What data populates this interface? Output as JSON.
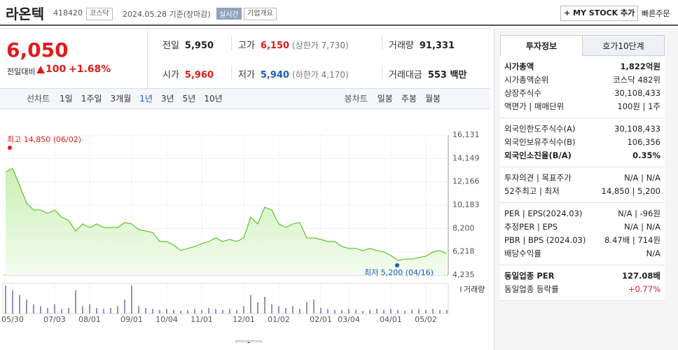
{
  "header": {
    "name": "라온텍",
    "code": "418420",
    "market": "코스닥",
    "date": "2024.05.28 기준(장마감)",
    "realtime": "실시간",
    "overview": "기업개요",
    "mystock": "+ MY STOCK 추가",
    "quick_order": "빠른주문"
  },
  "quote": {
    "price": "6,050",
    "change_label": "전일대비",
    "change": "100",
    "change_pct": "+1.68%"
  },
  "stats": [
    {
      "label": "전일",
      "value": "5,950"
    },
    {
      "label": "고가",
      "value": "6,150",
      "note": "(상한가 7,730)",
      "color": "#e01b1b"
    },
    {
      "label": "거래량",
      "value": "91,331"
    },
    {
      "label": "시가",
      "value": "5,960",
      "color": "#e01b1b"
    },
    {
      "label": "저가",
      "value": "5,940",
      "note": "(하한가 4,170)",
      "color": "#1a5bc4"
    },
    {
      "label": "거래대금",
      "value": "553 백만"
    }
  ],
  "tabs": {
    "line_label": "선차트",
    "line": [
      "1일",
      "1주일",
      "3개월",
      "1년",
      "3년",
      "5년",
      "10년"
    ],
    "active": "1년",
    "candle_label": "봉차트",
    "candle": [
      "일봉",
      "주봉",
      "월봉"
    ]
  },
  "chart_data": {
    "type": "line",
    "color": "#5cc22c",
    "grid": true,
    "categories": [
      null,
      "05/30",
      null,
      null,
      null,
      null,
      null,
      "07/03",
      null,
      null,
      null,
      null,
      "08/01",
      null,
      null,
      null,
      null,
      null,
      "09/01",
      null,
      null,
      null,
      null,
      "10/04",
      null,
      null,
      null,
      null,
      "11/01",
      null,
      null,
      null,
      null,
      null,
      "12/01",
      null,
      null,
      null,
      null,
      "01/02",
      null,
      null,
      null,
      null,
      null,
      "02/01",
      null,
      null,
      null,
      "03/04",
      null,
      null,
      null,
      null,
      null,
      "04/01",
      null,
      null,
      null,
      null,
      "05/02",
      null,
      null,
      null
    ],
    "values": [
      13000,
      13300,
      11850,
      10360,
      9770,
      9770,
      9470,
      9770,
      9170,
      8870,
      7980,
      8580,
      8280,
      8580,
      8280,
      8280,
      8280,
      8700,
      8580,
      8100,
      7980,
      7860,
      7090,
      7090,
      6790,
      6320,
      6500,
      6670,
      6910,
      7090,
      7390,
      7090,
      7270,
      7090,
      7390,
      9170,
      8580,
      10000,
      9770,
      8580,
      8280,
      8580,
      8700,
      7390,
      7390,
      7270,
      7090,
      7090,
      6670,
      6500,
      6500,
      6320,
      6500,
      6320,
      6200,
      5900,
      5480,
      5600,
      5600,
      5720,
      5840,
      6200,
      6320,
      6050
    ],
    "ylim": [
      4235,
      16131
    ],
    "yticks": [
      {
        "value": 16131,
        "label": "16,131"
      },
      {
        "value": 14149,
        "label": "14,149"
      },
      {
        "value": 12166,
        "label": "12,166"
      },
      {
        "value": 10183,
        "label": "10,183"
      },
      {
        "value": 8200,
        "label": "8,200"
      },
      {
        "value": 6218,
        "label": "6,218"
      },
      {
        "value": 4235,
        "label": "4,235"
      }
    ],
    "annotations": [
      "최고 14,850 (06/02)",
      "최저 5,200 (04/16)"
    ],
    "volume": {
      "name": "거래량",
      "color": "#9a8fbf",
      "values": [
        30,
        25,
        20,
        15,
        10,
        8,
        6,
        10,
        5,
        6,
        25,
        8,
        10,
        6,
        5,
        6,
        8,
        15,
        30,
        8,
        6,
        5,
        4,
        5,
        4,
        3,
        4,
        5,
        4,
        6,
        5,
        4,
        5,
        4,
        8,
        20,
        12,
        18,
        10,
        8,
        6,
        8,
        5,
        12,
        15,
        6,
        5,
        4,
        4,
        5,
        4,
        3,
        4,
        5,
        4,
        5,
        4,
        3,
        4,
        5,
        4,
        5,
        4,
        4
      ]
    }
  },
  "side": {
    "tabs": [
      "투자정보",
      "호가10단계"
    ],
    "groups": [
      [
        {
          "label": "시가총액",
          "value": "1,822억원",
          "bold": true
        },
        {
          "label": "시가총액순위",
          "value": "코스닥 482위"
        },
        {
          "label": "상장주식수",
          "value": "30,108,433"
        },
        {
          "label": "액면가 | 매매단위",
          "value": "100원 | 1주"
        }
      ],
      [
        {
          "label": "외국인한도주식수(A)",
          "value": "30,108,433"
        },
        {
          "label": "외국인보유주식수(B)",
          "value": "106,356"
        },
        {
          "label": "외국인소진율(B/A)",
          "value": "0.35%",
          "bold": true
        }
      ],
      [
        {
          "label": "투자의견 | 목표주가",
          "value": "N/A | N/A"
        },
        {
          "label": "52주최고 | 최저",
          "value": "14,850 | 5,200"
        }
      ],
      [
        {
          "label": "PER | EPS(2024.03)",
          "value": "N/A | -96원"
        },
        {
          "label": "추정PER | EPS",
          "value": "N/A | N/A"
        },
        {
          "label": "PBR | BPS (2024.03)",
          "value": "8.47배 | 714원"
        },
        {
          "label": "배당수익률",
          "value": "N/A"
        }
      ],
      [
        {
          "label": "동일업종 PER",
          "value": "127.08배",
          "bold": true
        },
        {
          "label": "동일업종 등락률",
          "value": "+0.77%",
          "color": "#e01b1b"
        }
      ]
    ]
  }
}
